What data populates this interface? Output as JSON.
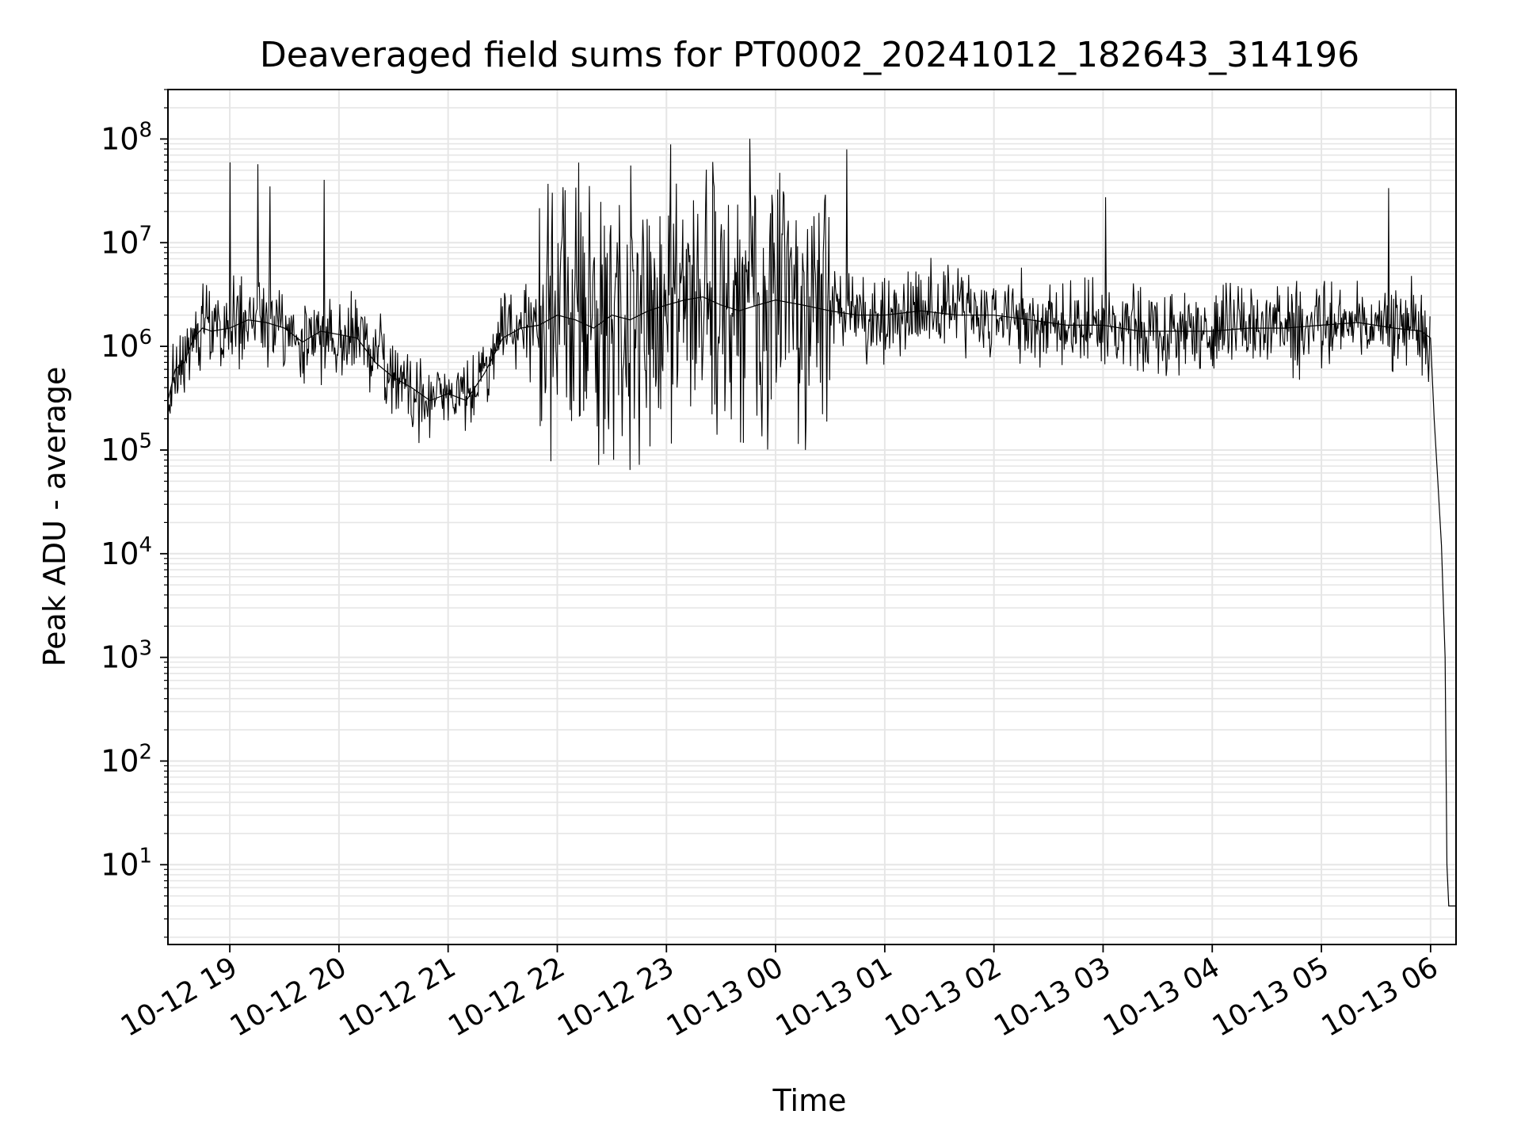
{
  "chart_data": {
    "type": "line",
    "title": "Deaveraged field sums for PT0002_20241012_182643_314196",
    "xlabel": "Time",
    "ylabel": "Peak ADU - average",
    "yscale": "log",
    "xlim": [
      "2024-10-12 18:26",
      "2024-10-13 06:14"
    ],
    "ylim": [
      1.7,
      300000000
    ],
    "grid": true,
    "grid_color": "#e6e6e6",
    "line_color": "#000000",
    "x_ticks": [
      {
        "t": "2024-10-12 19:00",
        "label": "10-12 19"
      },
      {
        "t": "2024-10-12 20:00",
        "label": "10-12 20"
      },
      {
        "t": "2024-10-12 21:00",
        "label": "10-12 21"
      },
      {
        "t": "2024-10-12 22:00",
        "label": "10-12 22"
      },
      {
        "t": "2024-10-12 23:00",
        "label": "10-12 23"
      },
      {
        "t": "2024-10-13 00:00",
        "label": "10-13 00"
      },
      {
        "t": "2024-10-13 01:00",
        "label": "10-13 01"
      },
      {
        "t": "2024-10-13 02:00",
        "label": "10-13 02"
      },
      {
        "t": "2024-10-13 03:00",
        "label": "10-13 03"
      },
      {
        "t": "2024-10-13 04:00",
        "label": "10-13 04"
      },
      {
        "t": "2024-10-13 05:00",
        "label": "10-13 05"
      },
      {
        "t": "2024-10-13 06:00",
        "label": "10-13 06"
      }
    ],
    "y_ticks": [
      {
        "value": 10,
        "base": "10",
        "exp": "1"
      },
      {
        "value": 100,
        "base": "10",
        "exp": "2"
      },
      {
        "value": 1000,
        "base": "10",
        "exp": "3"
      },
      {
        "value": 10000,
        "base": "10",
        "exp": "4"
      },
      {
        "value": 100000,
        "base": "10",
        "exp": "5"
      },
      {
        "value": 1000000,
        "base": "10",
        "exp": "6"
      },
      {
        "value": 10000000,
        "base": "10",
        "exp": "7"
      },
      {
        "value": 100000000,
        "base": "10",
        "exp": "8"
      }
    ],
    "series": [
      {
        "x": [
          "2024-10-12 18:26",
          "2024-10-12 18:30",
          "2024-10-12 18:35",
          "2024-10-12 18:40",
          "2024-10-12 18:45",
          "2024-10-12 18:50",
          "2024-10-12 19:00",
          "2024-10-12 19:10",
          "2024-10-12 19:20",
          "2024-10-12 19:30",
          "2024-10-12 19:40",
          "2024-10-12 19:50",
          "2024-10-12 20:00",
          "2024-10-12 20:10",
          "2024-10-12 20:20",
          "2024-10-12 20:30",
          "2024-10-12 20:40",
          "2024-10-12 20:50",
          "2024-10-12 21:00",
          "2024-10-12 21:10",
          "2024-10-12 21:20",
          "2024-10-12 21:30",
          "2024-10-12 21:40",
          "2024-10-12 21:50",
          "2024-10-12 22:00",
          "2024-10-12 22:10",
          "2024-10-12 22:20",
          "2024-10-12 22:30",
          "2024-10-12 22:40",
          "2024-10-12 22:50",
          "2024-10-12 23:00",
          "2024-10-12 23:10",
          "2024-10-12 23:20",
          "2024-10-12 23:30",
          "2024-10-12 23:40",
          "2024-10-12 23:50",
          "2024-10-13 00:00",
          "2024-10-13 00:15",
          "2024-10-13 00:30",
          "2024-10-13 00:45",
          "2024-10-13 01:00",
          "2024-10-13 01:20",
          "2024-10-13 01:40",
          "2024-10-13 02:00",
          "2024-10-13 02:20",
          "2024-10-13 02:40",
          "2024-10-13 03:00",
          "2024-10-13 03:20",
          "2024-10-13 03:40",
          "2024-10-13 04:00",
          "2024-10-13 04:20",
          "2024-10-13 04:40",
          "2024-10-13 05:00",
          "2024-10-13 05:20",
          "2024-10-13 05:40",
          "2024-10-13 05:55",
          "2024-10-13 06:00",
          "2024-10-13 06:02",
          "2024-10-13 06:04",
          "2024-10-13 06:06",
          "2024-10-13 06:08",
          "2024-10-13 06:09",
          "2024-10-13 06:10",
          "2024-10-13 06:12",
          "2024-10-13 06:14"
        ],
        "y": [
          300000,
          600000,
          700000,
          1200000,
          1500000,
          1400000,
          1500000,
          1800000,
          1700000,
          1500000,
          1100000,
          1400000,
          1300000,
          1200000,
          700000,
          500000,
          400000,
          300000,
          350000,
          300000,
          550000,
          1200000,
          1500000,
          1600000,
          2000000,
          1800000,
          1500000,
          2000000,
          1800000,
          2200000,
          2500000,
          2800000,
          3000000,
          2500000,
          2200000,
          2500000,
          2800000,
          2500000,
          2200000,
          2000000,
          2000000,
          2200000,
          2000000,
          2000000,
          1800000,
          1600000,
          1600000,
          1400000,
          1400000,
          1400000,
          1500000,
          1500000,
          1600000,
          1700000,
          1500000,
          1400000,
          1200000,
          200000,
          50000,
          12000,
          1000,
          10,
          4,
          4,
          4
        ]
      }
    ]
  }
}
